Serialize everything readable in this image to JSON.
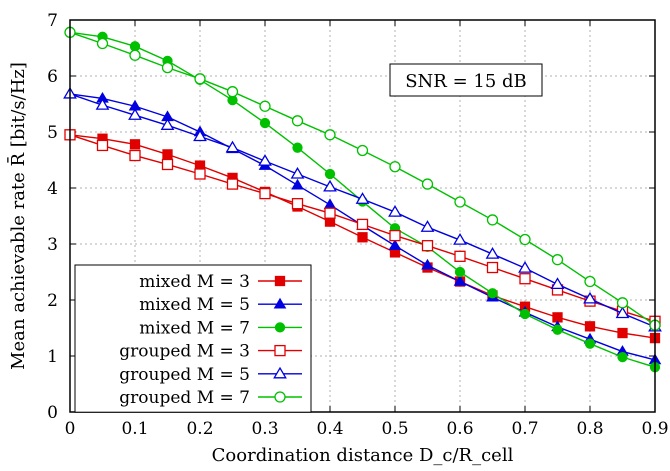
{
  "chart_data": {
    "type": "line",
    "xlabel": "Coordination distance D_c/R_cell",
    "ylabel": "Mean achievable rate R̄ [bit/s/Hz]",
    "xlim": [
      0,
      0.9
    ],
    "ylim": [
      0,
      7
    ],
    "xticks": [
      0,
      0.1,
      0.2,
      0.3,
      0.4,
      0.5,
      0.6,
      0.7,
      0.8,
      0.9
    ],
    "yticks": [
      0,
      1,
      2,
      3,
      4,
      5,
      6,
      7
    ],
    "grid": true,
    "legend_position": "bottom-left",
    "annotation": "SNR = 15 dB",
    "x": [
      0,
      0.05,
      0.1,
      0.15,
      0.2,
      0.25,
      0.3,
      0.35,
      0.4,
      0.45,
      0.5,
      0.55,
      0.6,
      0.65,
      0.7,
      0.75,
      0.8,
      0.85,
      0.9
    ],
    "series": [
      {
        "name": "mixed M = 3",
        "color": "#e00000",
        "marker": "square",
        "filled": true,
        "values": [
          4.95,
          4.88,
          4.78,
          4.6,
          4.4,
          4.18,
          3.93,
          3.67,
          3.4,
          3.12,
          2.85,
          2.58,
          2.33,
          2.08,
          1.88,
          1.69,
          1.53,
          1.41,
          1.32
        ]
      },
      {
        "name": "mixed M = 5",
        "color": "#0000e0",
        "marker": "triangle",
        "filled": true,
        "values": [
          5.68,
          5.6,
          5.46,
          5.27,
          5.0,
          4.7,
          4.4,
          4.05,
          3.7,
          3.33,
          2.97,
          2.62,
          2.33,
          2.05,
          1.78,
          1.52,
          1.3,
          1.08,
          0.93
        ]
      },
      {
        "name": "mixed M = 7",
        "color": "#00c000",
        "marker": "circle",
        "filled": true,
        "values": [
          6.78,
          6.7,
          6.53,
          6.27,
          5.93,
          5.57,
          5.16,
          4.72,
          4.25,
          3.76,
          3.28,
          2.95,
          2.5,
          2.12,
          1.75,
          1.47,
          1.22,
          0.98,
          0.8
        ]
      },
      {
        "name": "grouped M = 3",
        "color": "#e00000",
        "marker": "square",
        "filled": false,
        "values": [
          4.95,
          4.76,
          4.58,
          4.42,
          4.25,
          4.07,
          3.9,
          3.72,
          3.55,
          3.35,
          3.15,
          2.97,
          2.78,
          2.58,
          2.38,
          2.18,
          1.98,
          1.8,
          1.62
        ]
      },
      {
        "name": "grouped M = 5",
        "color": "#0000e0",
        "marker": "triangle",
        "filled": false,
        "values": [
          5.68,
          5.48,
          5.3,
          5.12,
          4.92,
          4.72,
          4.48,
          4.25,
          4.02,
          3.8,
          3.57,
          3.3,
          3.07,
          2.82,
          2.57,
          2.28,
          2.02,
          1.76,
          1.52
        ]
      },
      {
        "name": "grouped M = 7",
        "color": "#00c000",
        "marker": "circle",
        "filled": false,
        "values": [
          6.78,
          6.58,
          6.37,
          6.15,
          5.95,
          5.72,
          5.46,
          5.2,
          4.95,
          4.67,
          4.38,
          4.07,
          3.75,
          3.43,
          3.08,
          2.72,
          2.33,
          1.95,
          1.55
        ]
      }
    ]
  }
}
